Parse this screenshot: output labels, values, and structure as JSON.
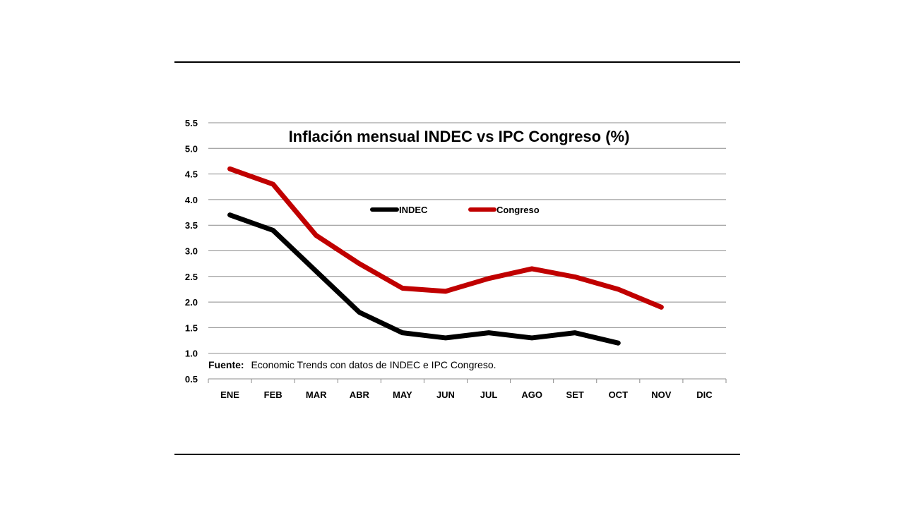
{
  "chart_data": {
    "type": "line",
    "title": "Inflación mensual INDEC vs IPC Congreso (%)",
    "categories": [
      "ENE",
      "FEB",
      "MAR",
      "ABR",
      "MAY",
      "JUN",
      "JUL",
      "AGO",
      "SET",
      "OCT",
      "NOV",
      "DIC"
    ],
    "series": [
      {
        "name": "INDEC",
        "color": "#000000",
        "values": [
          3.7,
          3.4,
          2.6,
          1.8,
          1.4,
          1.3,
          1.4,
          1.3,
          1.4,
          1.2,
          null,
          null
        ]
      },
      {
        "name": "Congreso",
        "color": "#c00000",
        "values": [
          4.6,
          4.3,
          3.3,
          2.75,
          2.27,
          2.21,
          2.46,
          2.65,
          2.49,
          2.25,
          1.9,
          null
        ]
      }
    ],
    "yticks": [
      "0.5",
      "1.0",
      "1.5",
      "2.0",
      "2.5",
      "3.0",
      "3.5",
      "4.0",
      "4.5",
      "5.0",
      "5.5"
    ],
    "ylim": [
      0.5,
      5.5
    ],
    "grid": true,
    "legend_position": "top-center",
    "source_label": "Fuente:",
    "source_text": "Economic Trends con datos de INDEC e IPC Congreso."
  }
}
